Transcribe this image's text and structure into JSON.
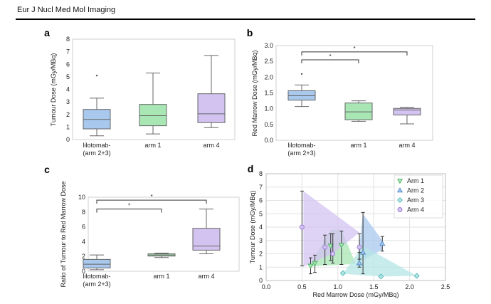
{
  "header": {
    "journal": "Eur J Nucl Med Mol Imaging"
  },
  "colors": {
    "arm23": "#a8c8ee",
    "arm1": "#a8e6b4",
    "arm4": "#d3c3f1",
    "arm3": "#b6e6e6",
    "arm23_edge": "#4f86c6",
    "arm1_edge": "#4caf63",
    "arm4_edge": "#9a7bd6",
    "arm3_edge": "#4fb3b3"
  },
  "chart_data": [
    {
      "panel": "a",
      "type": "box",
      "ylabel": "Tumour Dose (mGy/MBq)",
      "ylim": [
        0,
        8
      ],
      "yticks": [
        0,
        1,
        2,
        3,
        4,
        5,
        6,
        7,
        8
      ],
      "categories": [
        "lilotomab-\n(arm 2+3)",
        "arm 1",
        "arm 4"
      ],
      "boxes": [
        {
          "category": "lilotomab-\n(arm 2+3)",
          "min": 0.3,
          "q1": 0.85,
          "median": 1.6,
          "q3": 2.4,
          "max": 3.3,
          "outliers": [
            5.1
          ]
        },
        {
          "category": "arm 1",
          "min": 0.45,
          "q1": 1.1,
          "median": 1.9,
          "q3": 2.8,
          "max": 5.3,
          "outliers": []
        },
        {
          "category": "arm 4",
          "min": 0.95,
          "q1": 1.35,
          "median": 2.05,
          "q3": 3.65,
          "max": 6.7,
          "outliers": []
        }
      ],
      "significance": []
    },
    {
      "panel": "b",
      "type": "box",
      "ylabel": "Red Marrow Dose (mGy/MBq)",
      "ylim": [
        0,
        3
      ],
      "yticks": [
        0.0,
        0.5,
        1.0,
        1.5,
        2.0,
        2.5,
        3.0
      ],
      "categories": [
        "lilotomab-\n(arm 2+3)",
        "arm 1",
        "arm 4"
      ],
      "boxes": [
        {
          "category": "lilotomab-\n(arm 2+3)",
          "min": 1.07,
          "q1": 1.27,
          "median": 1.41,
          "q3": 1.57,
          "max": 1.75,
          "outliers": [
            2.1
          ]
        },
        {
          "category": "arm 1",
          "min": 0.6,
          "q1": 0.65,
          "median": 0.9,
          "q3": 1.18,
          "max": 1.25,
          "outliers": []
        },
        {
          "category": "arm 4",
          "min": 0.52,
          "q1": 0.8,
          "median": 0.96,
          "q3": 1.01,
          "max": 1.04,
          "outliers": []
        }
      ],
      "significance": [
        {
          "from": 0,
          "to": 1,
          "level": 2.55,
          "label": "*"
        },
        {
          "from": 0,
          "to": 2,
          "level": 2.8,
          "label": "*"
        }
      ]
    },
    {
      "panel": "c",
      "type": "box",
      "ylabel": "Ratio of Tumour to Red Marrow Dose",
      "ylim": [
        0,
        10
      ],
      "yticks": [
        0,
        2,
        4,
        6,
        8,
        10
      ],
      "categories": [
        "lilotomab-\n(arm 2+3)",
        "arm 1",
        "arm 4"
      ],
      "boxes": [
        {
          "category": "lilotomab-\n(arm 2+3)",
          "min": 0.2,
          "q1": 0.45,
          "median": 0.95,
          "q3": 1.6,
          "max": 2.2,
          "outliers": []
        },
        {
          "category": "arm 1",
          "min": 1.85,
          "q1": 2.05,
          "median": 2.2,
          "q3": 2.35,
          "max": 2.45,
          "outliers": []
        },
        {
          "category": "arm 4",
          "min": 2.35,
          "q1": 2.85,
          "median": 3.4,
          "q3": 5.8,
          "max": 8.4,
          "outliers": []
        }
      ],
      "significance": [
        {
          "from": 0,
          "to": 1,
          "level": 8.4,
          "label": "*"
        },
        {
          "from": 0,
          "to": 2,
          "level": 9.6,
          "label": "*"
        }
      ]
    },
    {
      "panel": "d",
      "type": "scatter",
      "xlabel": "Red Marrow Dose (mGy/MBq)",
      "ylabel": "Tumour Dose (mGy/MBq)",
      "xlim": [
        0,
        2.5
      ],
      "ylim": [
        0,
        8
      ],
      "xticks": [
        0.0,
        0.5,
        1.0,
        1.5,
        2.0,
        2.5
      ],
      "yticks": [
        0,
        1,
        2,
        3,
        4,
        5,
        6,
        7,
        8
      ],
      "grid": true,
      "legend_position": "top-right",
      "series": [
        {
          "name": "Arm 1",
          "marker": "triangle-down",
          "color_key": "arm1",
          "hull": [
            [
              0.6,
              1.05
            ],
            [
              0.9,
              3.8
            ],
            [
              1.05,
              3.8
            ],
            [
              1.25,
              1.25
            ]
          ],
          "points": [
            {
              "x": 0.62,
              "y": 1.1,
              "lo": 0.5,
              "hi": 1.7
            },
            {
              "x": 0.68,
              "y": 1.3,
              "lo": 0.6,
              "hi": 1.9
            },
            {
              "x": 0.9,
              "y": 2.6,
              "lo": 1.5,
              "hi": 3.5
            },
            {
              "x": 1.05,
              "y": 2.65,
              "lo": 1.2,
              "hi": 3.7
            }
          ]
        },
        {
          "name": "Arm 2",
          "marker": "triangle-up",
          "color_key": "arm23",
          "hull": [
            [
              1.27,
              1.3
            ],
            [
              1.35,
              5.0
            ],
            [
              1.62,
              3.0
            ],
            [
              1.62,
              2.3
            ]
          ],
          "points": [
            {
              "x": 1.3,
              "y": 1.3,
              "lo": 1.0,
              "hi": 2.1
            },
            {
              "x": 1.35,
              "y": 2.1,
              "lo": 0.5,
              "hi": 5.1
            },
            {
              "x": 1.62,
              "y": 2.75,
              "lo": 2.2,
              "hi": 3.3
            }
          ]
        },
        {
          "name": "Arm 3",
          "marker": "diamond",
          "color_key": "arm3",
          "hull": [
            [
              1.07,
              0.5
            ],
            [
              1.35,
              2.6
            ],
            [
              2.1,
              0.35
            ],
            [
              1.6,
              0.3
            ]
          ],
          "points": [
            {
              "x": 1.07,
              "y": 0.55
            },
            {
              "x": 1.6,
              "y": 0.3
            },
            {
              "x": 2.1,
              "y": 0.35
            }
          ]
        },
        {
          "name": "Arm 4",
          "marker": "circle",
          "color_key": "arm4",
          "hull": [
            [
              0.52,
              6.7
            ],
            [
              0.52,
              1.05
            ],
            [
              0.93,
              2.0
            ],
            [
              1.3,
              3.6
            ]
          ],
          "points": [
            {
              "x": 0.5,
              "y": 4.0,
              "lo": 1.1,
              "hi": 6.7
            },
            {
              "x": 0.82,
              "y": 2.5,
              "lo": 1.2,
              "hi": 3.4
            },
            {
              "x": 0.93,
              "y": 2.0,
              "lo": 1.3,
              "hi": 3.5
            },
            {
              "x": 1.3,
              "y": 2.5,
              "lo": 1.6,
              "hi": 3.5
            }
          ]
        }
      ]
    }
  ]
}
